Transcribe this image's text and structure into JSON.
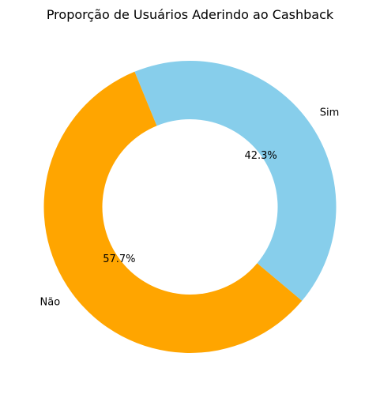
{
  "chart_data": {
    "type": "pie",
    "style": "donut",
    "title": "Proporção de Usuários Aderindo ao Cashback",
    "slices": [
      {
        "label": "Sim",
        "value": 42.3,
        "pct_label": "42.3%",
        "color": "#87CEEB"
      },
      {
        "label": "Não",
        "value": 57.7,
        "pct_label": "57.7%",
        "color": "#FFA500"
      }
    ],
    "start_angle_deg": -40,
    "direction": "counterclockwise",
    "legend": "none"
  }
}
